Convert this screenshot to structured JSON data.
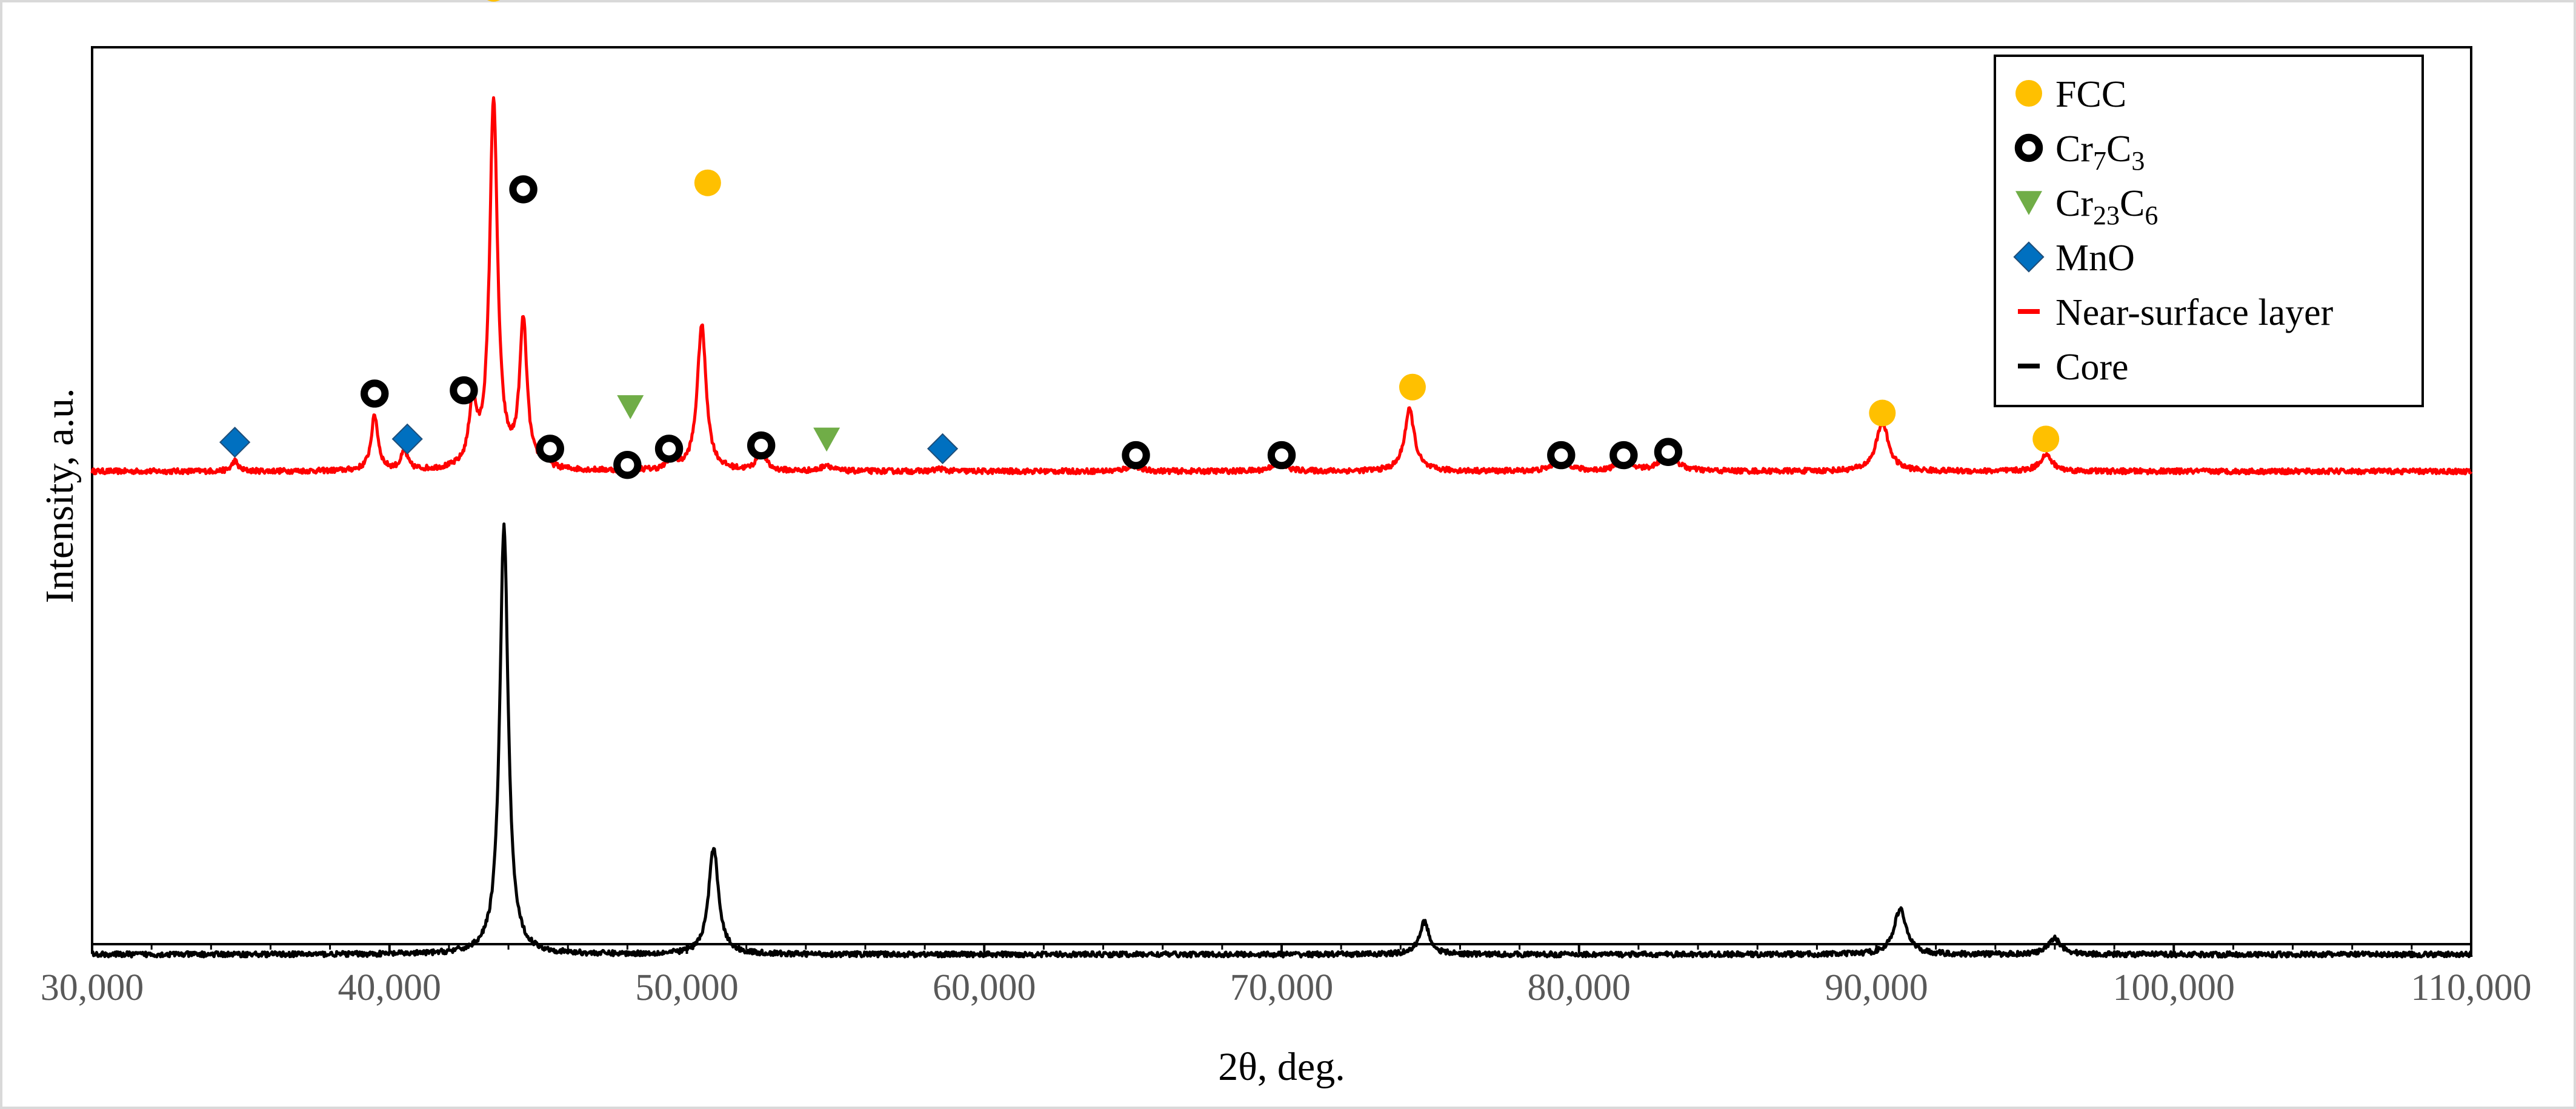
{
  "chart_data": {
    "type": "line",
    "title": "",
    "xlabel": "2θ, deg.",
    "ylabel": "Intensity, a.u.",
    "xlim": [
      30,
      110
    ],
    "x_ticks": [
      {
        "value": 30,
        "label": "30,000"
      },
      {
        "value": 40,
        "label": "40,000"
      },
      {
        "value": 50,
        "label": "50,000"
      },
      {
        "value": 60,
        "label": "60,000"
      },
      {
        "value": 70,
        "label": "70,000"
      },
      {
        "value": 80,
        "label": "80,000"
      },
      {
        "value": 90,
        "label": "90,000"
      },
      {
        "value": 100,
        "label": "100,000"
      },
      {
        "value": 110,
        "label": "110,000"
      }
    ],
    "y_ticks_shown": false,
    "grid": false,
    "legend_position": "top-right",
    "series": [
      {
        "name": "Near-surface layer",
        "color": "#ff0000",
        "baseline": 0.245,
        "noise": 0.004,
        "peaks": [
          {
            "x": 34.8,
            "h": 0.016,
            "w": 0.12
          },
          {
            "x": 39.5,
            "h": 0.085,
            "w": 0.14
          },
          {
            "x": 40.5,
            "h": 0.028,
            "w": 0.14
          },
          {
            "x": 42.8,
            "h": 0.095,
            "w": 0.15
          },
          {
            "x": 43.5,
            "h": 0.57,
            "w": 0.16
          },
          {
            "x": 44.5,
            "h": 0.225,
            "w": 0.15
          },
          {
            "x": 45.2,
            "h": 0.018,
            "w": 0.12
          },
          {
            "x": 48.2,
            "h": 0.006,
            "w": 0.15
          },
          {
            "x": 49.5,
            "h": 0.022,
            "w": 0.14
          },
          {
            "x": 50.5,
            "h": 0.225,
            "w": 0.18
          },
          {
            "x": 52.5,
            "h": 0.038,
            "w": 0.15
          },
          {
            "x": 54.7,
            "h": 0.01,
            "w": 0.18
          },
          {
            "x": 58.5,
            "h": 0.004,
            "w": 0.18
          },
          {
            "x": 65.0,
            "h": 0.009,
            "w": 0.25
          },
          {
            "x": 69.9,
            "h": 0.015,
            "w": 0.25
          },
          {
            "x": 74.3,
            "h": 0.095,
            "w": 0.2
          },
          {
            "x": 79.4,
            "h": 0.024,
            "w": 0.25
          },
          {
            "x": 81.5,
            "h": 0.02,
            "w": 0.25
          },
          {
            "x": 83.0,
            "h": 0.03,
            "w": 0.3
          },
          {
            "x": 90.2,
            "h": 0.075,
            "w": 0.25
          },
          {
            "x": 95.7,
            "h": 0.025,
            "w": 0.25
          }
        ]
      },
      {
        "name": "Core",
        "color": "#000000",
        "baseline": -0.5,
        "noise": 0.004,
        "peaks": [
          {
            "x": 43.85,
            "h": 0.66,
            "w": 0.17
          },
          {
            "x": 50.9,
            "h": 0.165,
            "w": 0.2
          },
          {
            "x": 74.8,
            "h": 0.05,
            "w": 0.2
          },
          {
            "x": 90.8,
            "h": 0.07,
            "w": 0.25
          },
          {
            "x": 96.0,
            "h": 0.025,
            "w": 0.25
          }
        ]
      }
    ],
    "phase_markers": [
      {
        "phase": "FCC",
        "color": "#ffc000",
        "shape": "circle",
        "points": [
          [
            43.5,
            0.99
          ],
          [
            50.7,
            0.69
          ],
          [
            74.4,
            0.375
          ],
          [
            90.2,
            0.335
          ],
          [
            95.7,
            0.295
          ]
        ]
      },
      {
        "phase": "Cr7C3",
        "color": "#000000",
        "shape": "ring",
        "points": [
          [
            39.5,
            0.365
          ],
          [
            42.5,
            0.37
          ],
          [
            44.5,
            0.68
          ],
          [
            45.4,
            0.28
          ],
          [
            48.0,
            0.255
          ],
          [
            49.4,
            0.28
          ],
          [
            52.5,
            0.285
          ],
          [
            65.1,
            0.27
          ],
          [
            70.0,
            0.27
          ],
          [
            79.4,
            0.27
          ],
          [
            81.5,
            0.27
          ],
          [
            83.0,
            0.275
          ]
        ]
      },
      {
        "phase": "Cr23C6",
        "color": "#70ad47",
        "shape": "triangle",
        "points": [
          [
            48.1,
            0.345
          ],
          [
            54.7,
            0.295
          ]
        ]
      },
      {
        "phase": "MnO",
        "color": "#0070c0",
        "shape": "diamond",
        "points": [
          [
            34.8,
            0.29
          ],
          [
            40.6,
            0.295
          ],
          [
            58.6,
            0.28
          ]
        ]
      }
    ],
    "legend": [
      {
        "label_main": "FCC",
        "label_sub1": "",
        "label_mid": "",
        "label_sub2": "",
        "label_tail": "",
        "kind": "marker",
        "shape": "circle",
        "color": "#ffc000"
      },
      {
        "label_main": "Cr",
        "label_sub1": "7",
        "label_mid": "C",
        "label_sub2": "3",
        "label_tail": "",
        "kind": "marker",
        "shape": "ring",
        "color": "#000000"
      },
      {
        "label_main": "Cr",
        "label_sub1": "23",
        "label_mid": "C",
        "label_sub2": "6",
        "label_tail": "",
        "kind": "marker",
        "shape": "triangle",
        "color": "#70ad47"
      },
      {
        "label_main": "MnO",
        "label_sub1": "",
        "label_mid": "",
        "label_sub2": "",
        "label_tail": "",
        "kind": "marker",
        "shape": "diamond",
        "color": "#0070c0"
      },
      {
        "label_main": "Near-surface layer",
        "label_sub1": "",
        "label_mid": "",
        "label_sub2": "",
        "label_tail": "",
        "kind": "line",
        "shape": "line",
        "color": "#ff0000"
      },
      {
        "label_main": "Core",
        "label_sub1": "",
        "label_mid": "",
        "label_sub2": "",
        "label_tail": "",
        "kind": "line",
        "shape": "line",
        "color": "#000000"
      }
    ]
  }
}
